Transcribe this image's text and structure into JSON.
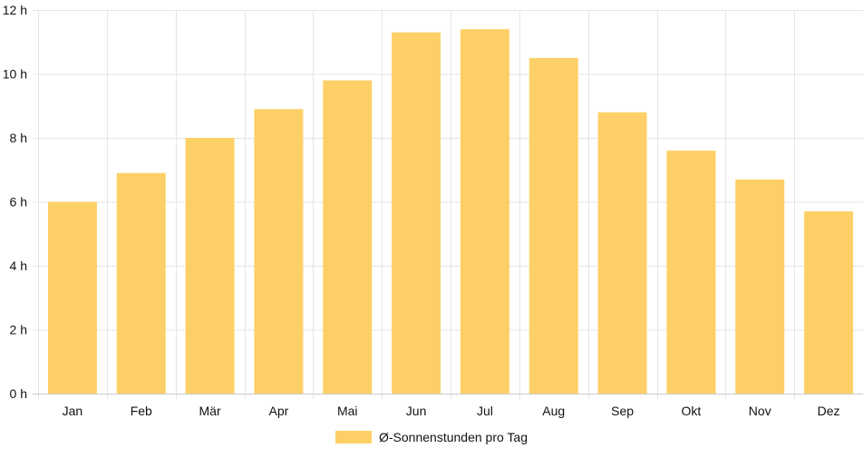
{
  "chart_data": {
    "type": "bar",
    "categories": [
      "Jan",
      "Feb",
      "Mär",
      "Apr",
      "Mai",
      "Jun",
      "Jul",
      "Aug",
      "Sep",
      "Okt",
      "Nov",
      "Dez"
    ],
    "series": [
      {
        "name": "Ø-Sonnenstunden pro Tag",
        "values": [
          6.0,
          6.9,
          8.0,
          8.9,
          9.8,
          11.3,
          11.4,
          10.5,
          8.8,
          7.6,
          6.7,
          5.7
        ]
      }
    ],
    "ylim": [
      0,
      12
    ],
    "yticks": [
      0,
      2,
      4,
      6,
      8,
      10,
      12
    ],
    "ytick_suffix": " h",
    "grid": true,
    "legend_position": "bottom-center",
    "colors": {
      "bar": "#fdd067",
      "grid": "#e5e5e5",
      "axis": "#cccccc"
    }
  }
}
